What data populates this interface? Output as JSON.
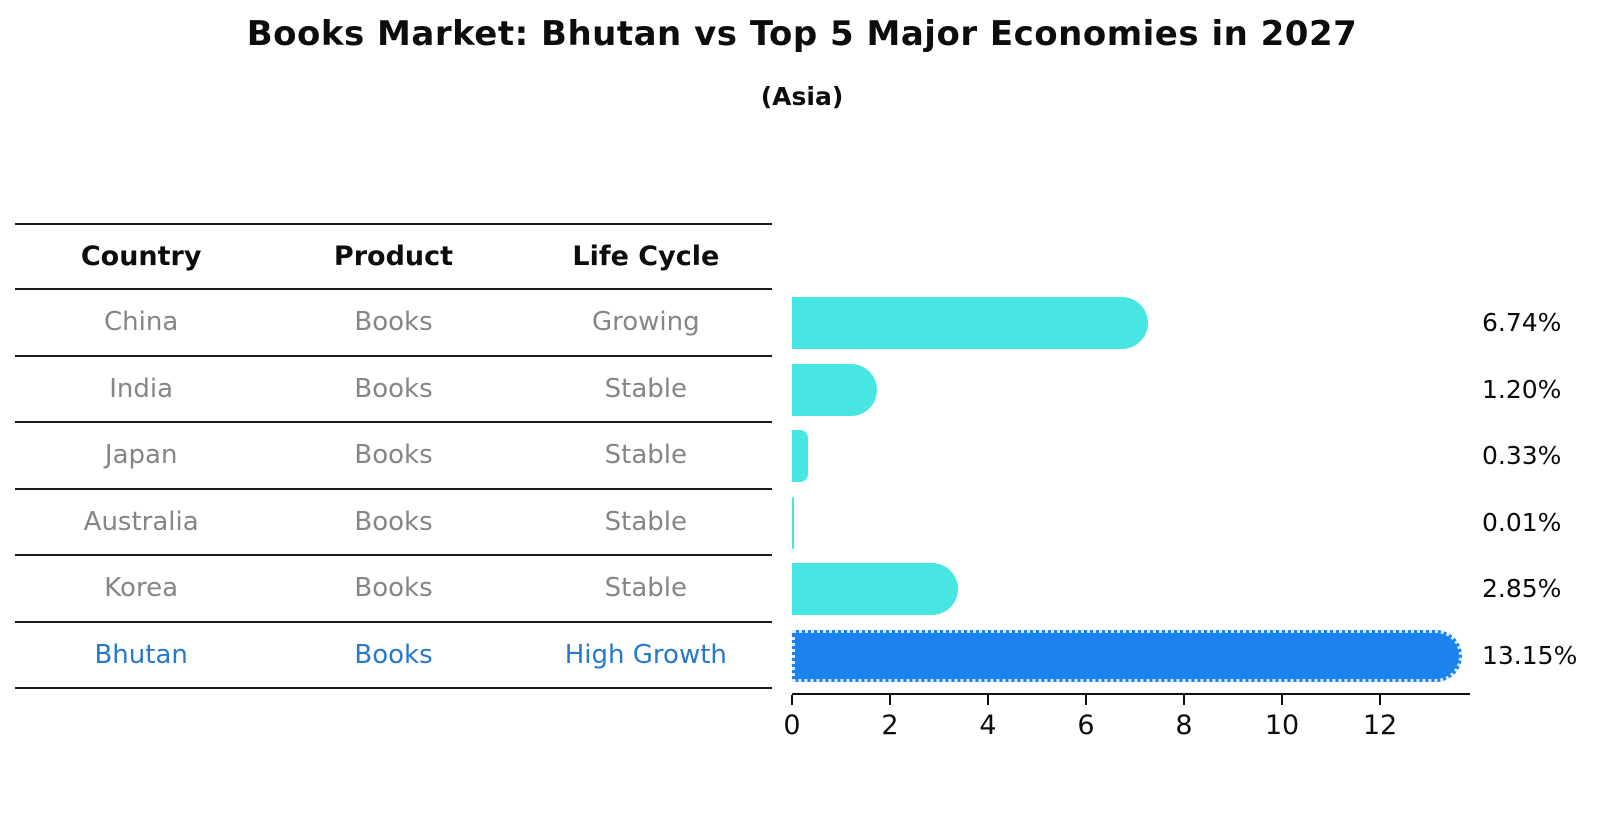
{
  "title": "Books Market: Bhutan vs Top 5 Major Economies in 2027",
  "subtitle": "(Asia)",
  "table": {
    "headers": [
      "Country",
      "Product",
      "Life Cycle"
    ],
    "rows": [
      {
        "country": "China",
        "product": "Books",
        "life_cycle": "Growing",
        "highlight": false
      },
      {
        "country": "India",
        "product": "Books",
        "life_cycle": "Stable",
        "highlight": false
      },
      {
        "country": "Japan",
        "product": "Books",
        "life_cycle": "Stable",
        "highlight": false
      },
      {
        "country": "Australia",
        "product": "Books",
        "life_cycle": "Stable",
        "highlight": false
      },
      {
        "country": "Korea",
        "product": "Books",
        "life_cycle": "Stable",
        "highlight": false
      },
      {
        "country": "Bhutan",
        "product": "Books",
        "life_cycle": "High Growth",
        "highlight": true
      }
    ]
  },
  "chart_data": {
    "type": "bar",
    "orientation": "horizontal",
    "categories": [
      "China",
      "India",
      "Japan",
      "Australia",
      "Korea",
      "Bhutan"
    ],
    "values": [
      6.74,
      1.2,
      0.33,
      0.01,
      2.85,
      13.15
    ],
    "value_labels": [
      "6.74%",
      "1.20%",
      "0.33%",
      "0.01%",
      "2.85%",
      "13.15%"
    ],
    "highlight_index": 5,
    "x_ticks": [
      0,
      2,
      4,
      6,
      8,
      10,
      12
    ],
    "xlim": [
      0,
      13.8
    ],
    "grid": false,
    "legend": false,
    "bar_color": "#47e6e3",
    "highlight_color": "#1b82ee",
    "text_gray": "#868686",
    "highlight_text_color": "#2878ce"
  }
}
